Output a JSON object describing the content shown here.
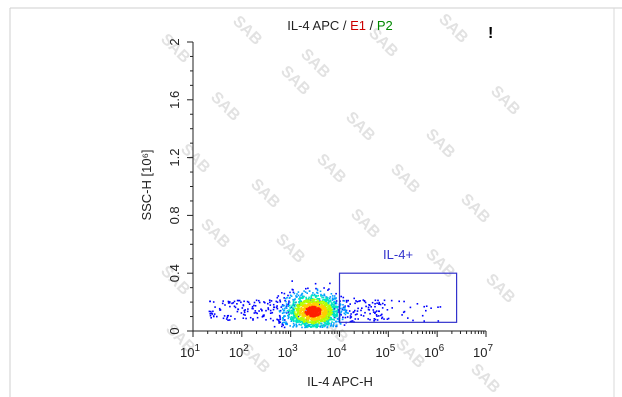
{
  "chart_data": {
    "type": "scatter",
    "title_parts": [
      {
        "text": "IL-4 APC",
        "color": "#222222"
      },
      {
        "text": " / ",
        "color": "#222222"
      },
      {
        "text": "E1",
        "color": "#cc0000"
      },
      {
        "text": " / ",
        "color": "#222222"
      },
      {
        "text": "P2",
        "color": "#008800"
      }
    ],
    "corner_mark": "!",
    "xlabel": "IL-4 APC-H",
    "ylabel": "SSC-H [10⁶]",
    "x_scale": "log",
    "xlim": [
      10,
      10000000
    ],
    "ylim": [
      0,
      2
    ],
    "x_ticks": [
      {
        "base": "10",
        "exp": "1",
        "value": 10
      },
      {
        "base": "10",
        "exp": "2",
        "value": 100
      },
      {
        "base": "10",
        "exp": "3",
        "value": 1000
      },
      {
        "base": "10",
        "exp": "4",
        "value": 10000
      },
      {
        "base": "10",
        "exp": "5",
        "value": 100000
      },
      {
        "base": "10",
        "exp": "6",
        "value": 1000000
      },
      {
        "base": "10",
        "exp": "7",
        "value": 10000000
      }
    ],
    "y_ticks": [
      {
        "label": "0",
        "value": 0
      },
      {
        "label": "0.4",
        "value": 0.4
      },
      {
        "label": "0.8",
        "value": 0.8
      },
      {
        "label": "1.2",
        "value": 1.2
      },
      {
        "label": "1.6",
        "value": 1.6
      },
      {
        "label": "2",
        "value": 2
      }
    ],
    "gate": {
      "label": "IL-4+",
      "color": "#3333cc",
      "x_range": [
        10000,
        2500000
      ],
      "y_range": [
        0.06,
        0.4
      ]
    },
    "population": {
      "center_x": 2800,
      "center_y": 0.14,
      "spread_log_x": 0.28,
      "spread_y": 0.06,
      "events": 1400,
      "tail_x_range": [
        20,
        100000
      ],
      "tail_events": 260,
      "density_colors": [
        "#0000ff",
        "#00a0ff",
        "#00e5c0",
        "#b0ff00",
        "#ffd000",
        "#ff2000"
      ]
    },
    "grid": false,
    "watermark_text": "SAB"
  }
}
